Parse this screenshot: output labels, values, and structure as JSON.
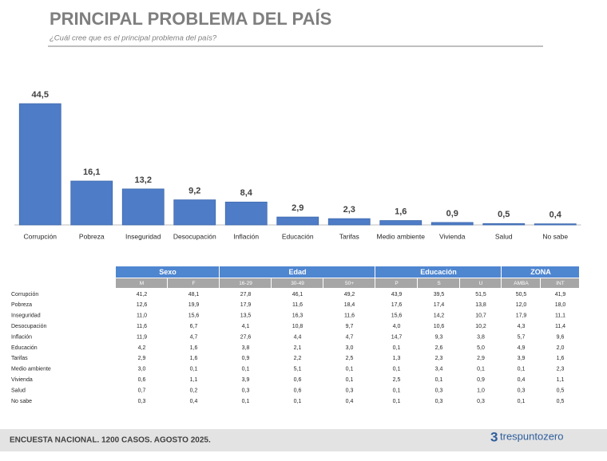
{
  "chart_data": {
    "type": "bar",
    "title": "PRINCIPAL PROBLEMA DEL PAÍS",
    "subtitle": "¿Cuál cree que es el principal problema del país?",
    "categories": [
      "Corrupción",
      "Pobreza",
      "Inseguridad",
      "Desocupación",
      "Inflación",
      "Educación",
      "Tarifas",
      "Medio ambiente",
      "Vivienda",
      "Salud",
      "No sabe"
    ],
    "values": [
      44.5,
      16.1,
      13.2,
      9.2,
      8.4,
      2.9,
      2.3,
      1.6,
      0.9,
      0.5,
      0.4
    ],
    "value_labels": [
      "44,5",
      "16,1",
      "13,2",
      "9,2",
      "8,4",
      "2,9",
      "2,3",
      "1,6",
      "0,9",
      "0,5",
      "0,4"
    ],
    "color": "#4f7cc6"
  },
  "table": {
    "groups": [
      {
        "label": "Sexo",
        "span": 2
      },
      {
        "label": "Edad",
        "span": 3
      },
      {
        "label": "Educación",
        "span": 3
      },
      {
        "label": "ZONA",
        "span": 2
      }
    ],
    "columns": [
      "M",
      "F",
      "16-29",
      "30-49",
      "50+",
      "P",
      "S",
      "U",
      "AMBA",
      "INT"
    ],
    "rows": [
      {
        "label": "Corrupción",
        "cells": [
          "41,2",
          "48,1",
          "27,8",
          "46,1",
          "49,2",
          "43,9",
          "39,5",
          "51,5",
          "50,5",
          "41,9"
        ]
      },
      {
        "label": "Pobreza",
        "cells": [
          "12,6",
          "19,9",
          "17,9",
          "11,6",
          "18,4",
          "17,6",
          "17,4",
          "13,8",
          "12,0",
          "18,0"
        ]
      },
      {
        "label": "Inseguridad",
        "cells": [
          "11,0",
          "15,6",
          "13,5",
          "16,3",
          "11,6",
          "15,6",
          "14,2",
          "10,7",
          "17,9",
          "11,1"
        ]
      },
      {
        "label": "Desocupación",
        "cells": [
          "11,6",
          "6,7",
          "4,1",
          "10,8",
          "9,7",
          "4,0",
          "10,6",
          "10,2",
          "4,3",
          "11,4"
        ]
      },
      {
        "label": "Inflación",
        "cells": [
          "11,9",
          "4,7",
          "27,6",
          "4,4",
          "4,7",
          "14,7",
          "9,3",
          "3,8",
          "5,7",
          "9,6"
        ]
      },
      {
        "label": "Educación",
        "cells": [
          "4,2",
          "1,6",
          "3,8",
          "2,1",
          "3,0",
          "0,1",
          "2,6",
          "5,0",
          "4,9",
          "2,0"
        ]
      },
      {
        "label": "Tarifas",
        "cells": [
          "2,9",
          "1,6",
          "0,9",
          "2,2",
          "2,5",
          "1,3",
          "2,3",
          "2,9",
          "3,9",
          "1,6"
        ]
      },
      {
        "label": "Medio ambiente",
        "cells": [
          "3,0",
          "0,1",
          "0,1",
          "5,1",
          "0,1",
          "0,1",
          "3,4",
          "0,1",
          "0,1",
          "2,3"
        ]
      },
      {
        "label": "Vivienda",
        "cells": [
          "0,6",
          "1,1",
          "3,9",
          "0,6",
          "0,1",
          "2,5",
          "0,1",
          "0,9",
          "0,4",
          "1,1"
        ]
      },
      {
        "label": "Salud",
        "cells": [
          "0,7",
          "0,2",
          "0,3",
          "0,6",
          "0,3",
          "0,1",
          "0,3",
          "1,0",
          "0,3",
          "0,5"
        ]
      },
      {
        "label": "No sabe",
        "cells": [
          "0,3",
          "0,4",
          "0,1",
          "0,1",
          "0,4",
          "0,1",
          "0,3",
          "0,3",
          "0,1",
          "0,5"
        ]
      }
    ]
  },
  "footer": "ENCUESTA NACIONAL. 1200 CASOS. AGOSTO 2025.",
  "logo": {
    "symbol": "3",
    "text": "trespuntozero"
  }
}
